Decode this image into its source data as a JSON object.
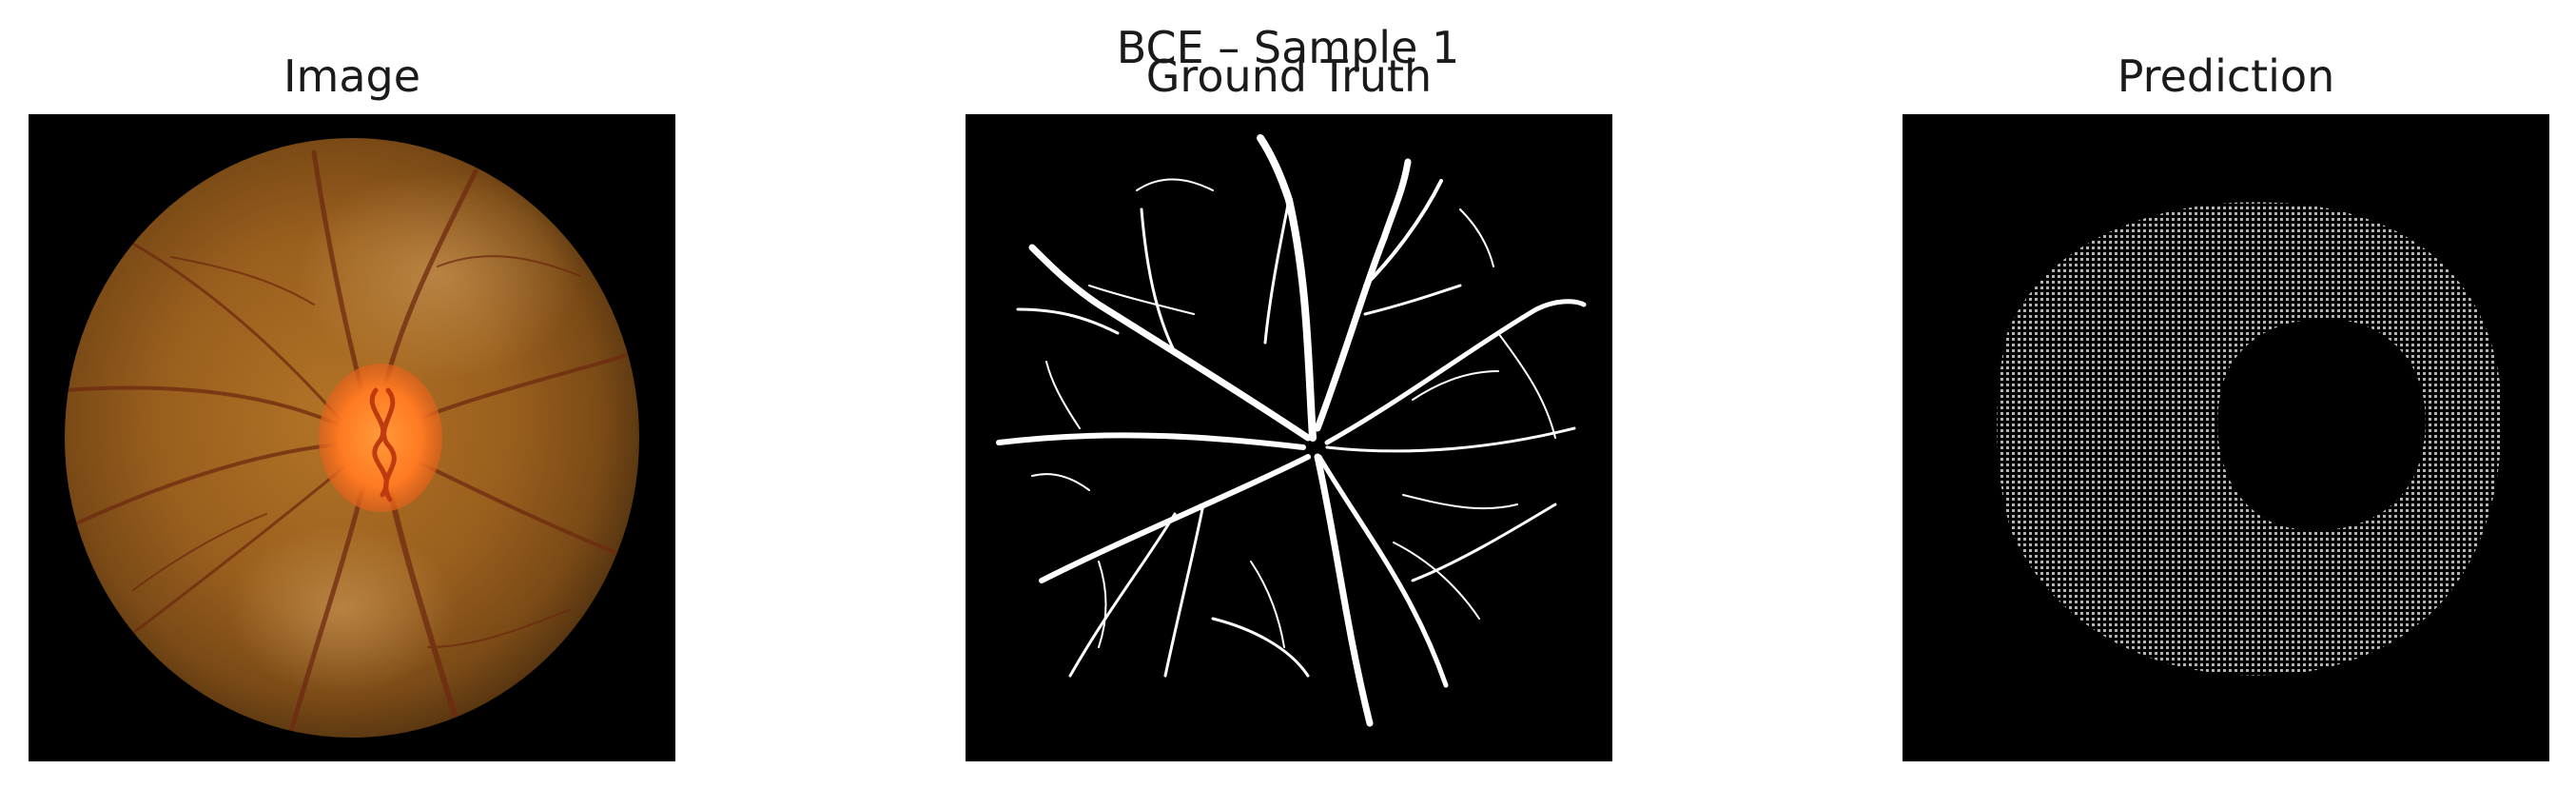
{
  "figure": {
    "suptitle": "BCE – Sample 1",
    "panels": [
      {
        "title": "Image",
        "content": "retinal fundus photograph"
      },
      {
        "title": "Ground Truth",
        "content": "vessel mask"
      },
      {
        "title": "Prediction",
        "content": "predicted mask"
      }
    ]
  },
  "colors": {
    "background": "#ffffff",
    "panel_background": "#000000",
    "fundus_inner": "#a86a22",
    "fundus_outer": "#5e3b12",
    "optic_disc": "#ff7a22",
    "vessel_dark": "#6e2a10",
    "mask_white": "#ffffff",
    "prediction_gray": "#9a9a9a"
  }
}
